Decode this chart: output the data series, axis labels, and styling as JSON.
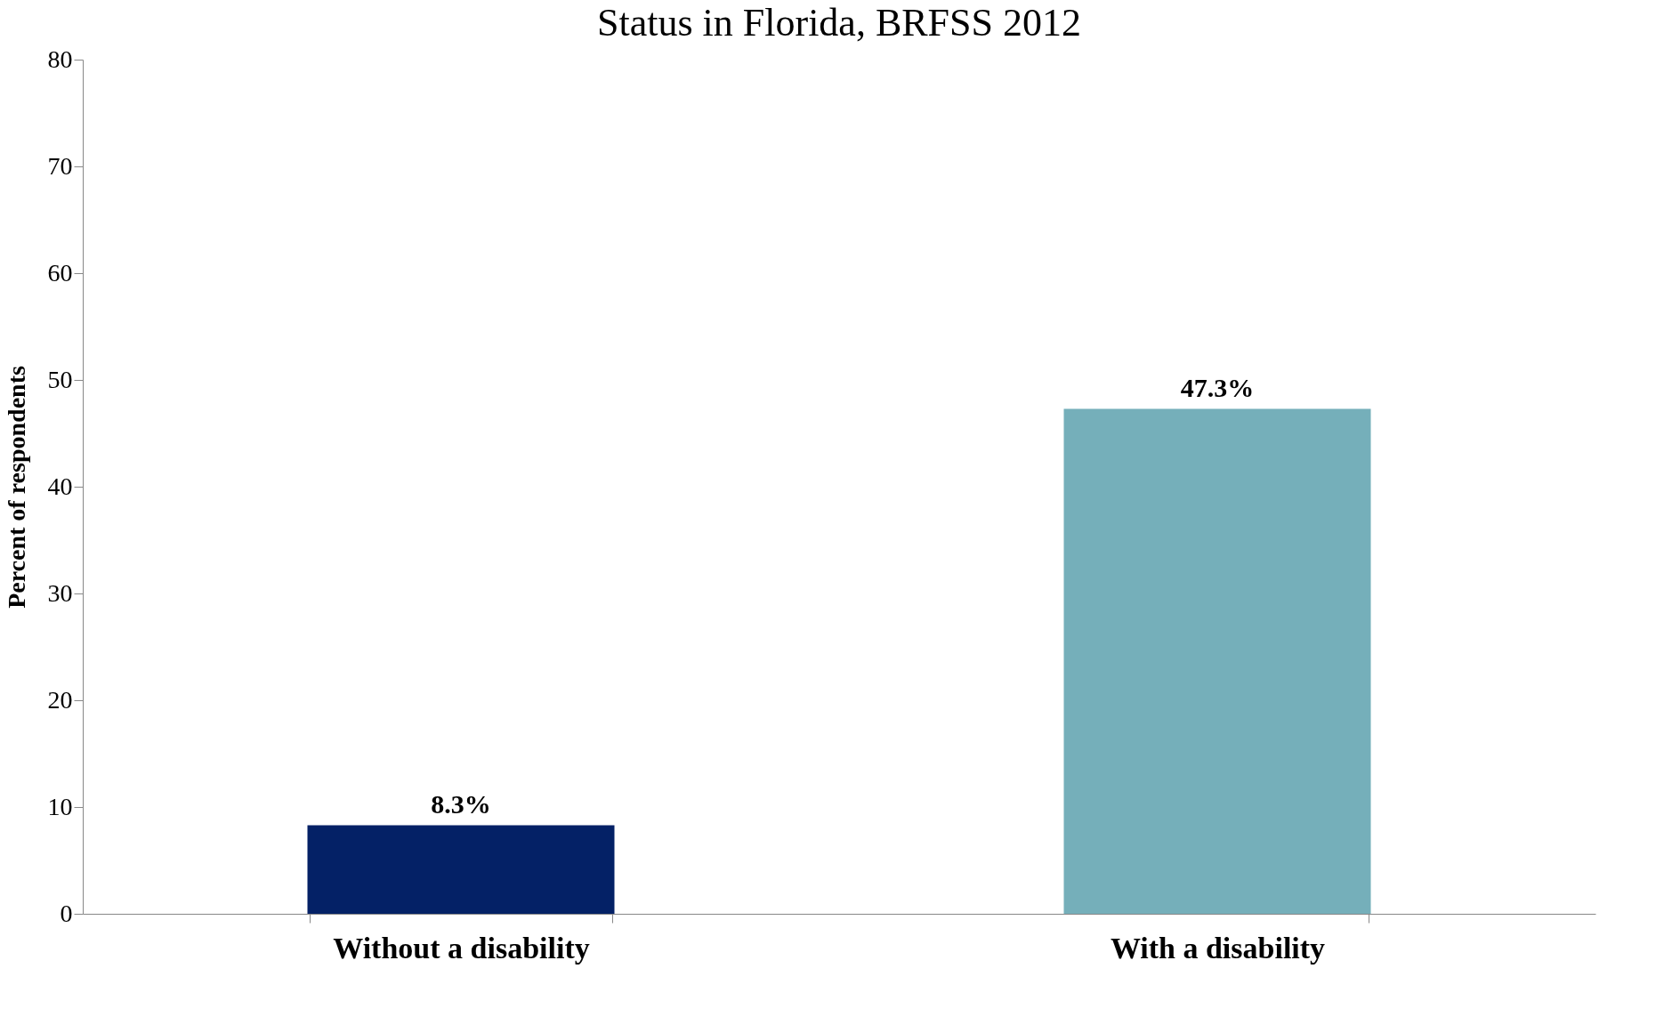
{
  "chart_data": {
    "type": "bar",
    "title": "Status in Florida, BRFSS 2012",
    "ylabel": "Percent of respondents",
    "categories": [
      "Without a disability",
      "With a disability"
    ],
    "values": [
      8.3,
      47.3
    ],
    "colors": [
      "#042166",
      "#75afba"
    ],
    "value_labels": [
      "8.3%",
      "47.3%"
    ],
    "ylim": [
      0,
      80
    ],
    "yticks": [
      0,
      10,
      20,
      30,
      40,
      50,
      60,
      70,
      80
    ],
    "grid": false
  }
}
